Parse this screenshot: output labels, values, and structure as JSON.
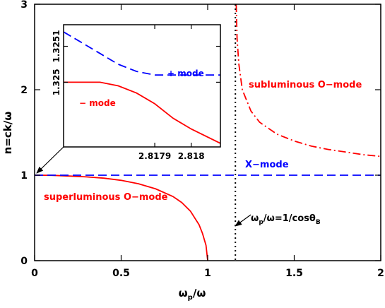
{
  "chart_data": [
    {
      "type": "line",
      "title": "",
      "xlabel_base": "ω",
      "xlabel_sub": "p",
      "xlabel_rest": "/ω",
      "ylabel": "n=ck/ω",
      "xlim": [
        0,
        2
      ],
      "ylim": [
        0,
        3
      ],
      "x_ticks": [
        0,
        0.5,
        1,
        1.5,
        2
      ],
      "x_tick_labels": [
        "0",
        "0.5",
        "1",
        "1.5",
        "2"
      ],
      "y_ticks": [
        0,
        1,
        2,
        3
      ],
      "y_tick_labels": [
        "0",
        "1",
        "2",
        "3"
      ],
      "grid": false,
      "series": [
        {
          "name": "superluminous O−mode",
          "color": "#ff0000",
          "style": "solid",
          "x": [
            0.0,
            0.1,
            0.2,
            0.3,
            0.4,
            0.5,
            0.6,
            0.7,
            0.8,
            0.85,
            0.9,
            0.95,
            0.97,
            0.99,
            1.0
          ],
          "y": [
            1.0,
            0.998,
            0.99,
            0.98,
            0.965,
            0.94,
            0.9,
            0.84,
            0.75,
            0.68,
            0.58,
            0.42,
            0.32,
            0.18,
            0.0
          ]
        },
        {
          "name": "subluminous O−mode",
          "color": "#ff0000",
          "style": "dashdot",
          "x": [
            1.165,
            1.17,
            1.18,
            1.2,
            1.25,
            1.3,
            1.4,
            1.5,
            1.6,
            1.7,
            1.8,
            1.9,
            2.0
          ],
          "y": [
            3.0,
            2.6,
            2.3,
            2.0,
            1.75,
            1.62,
            1.48,
            1.4,
            1.34,
            1.3,
            1.27,
            1.24,
            1.22
          ]
        },
        {
          "name": "X−mode",
          "color": "#0000ff",
          "style": "dashed",
          "x": [
            0,
            2
          ],
          "y": [
            1,
            1
          ]
        }
      ],
      "vertical_line": {
        "x": 1.16,
        "style": "dotted",
        "color": "#000000"
      },
      "annotations": {
        "super_label": "superluminous O−mode",
        "sub_label": "subluminous O−mode",
        "xmode_label": "X−mode",
        "theta_label_pre": "ω",
        "theta_label_sub_p": "p",
        "theta_label_mid": "/ω=1/cosθ",
        "theta_label_sub_b": "B"
      }
    },
    {
      "type": "line",
      "title": "",
      "xlim": [
        2.81765,
        2.81808
      ],
      "ylim": [
        1.32482,
        1.32516
      ],
      "x_ticks": [
        2.8179,
        2.818
      ],
      "x_tick_labels": [
        "2.8179",
        "2.818"
      ],
      "y_ticks": [
        1.325,
        1.3251
      ],
      "y_tick_labels": [
        "1.325",
        "1.3251"
      ],
      "series": [
        {
          "name": "+ mode",
          "color": "#0000ff",
          "style": "dashed",
          "x": [
            2.81765,
            2.8177,
            2.81775,
            2.8178,
            2.81785,
            2.8179,
            2.81795,
            2.818,
            2.81808
          ],
          "y": [
            1.32514,
            1.32511,
            1.32508,
            1.32505,
            1.32503,
            1.32502,
            1.32502,
            1.32502,
            1.32502
          ]
        },
        {
          "name": "− mode",
          "color": "#ff0000",
          "style": "solid",
          "x": [
            2.81765,
            2.8177,
            2.81775,
            2.8178,
            2.81785,
            2.8179,
            2.81795,
            2.818,
            2.81808
          ],
          "y": [
            1.325,
            1.325,
            1.325,
            1.32499,
            1.32497,
            1.32494,
            1.3249,
            1.32487,
            1.32483
          ]
        }
      ]
    }
  ]
}
